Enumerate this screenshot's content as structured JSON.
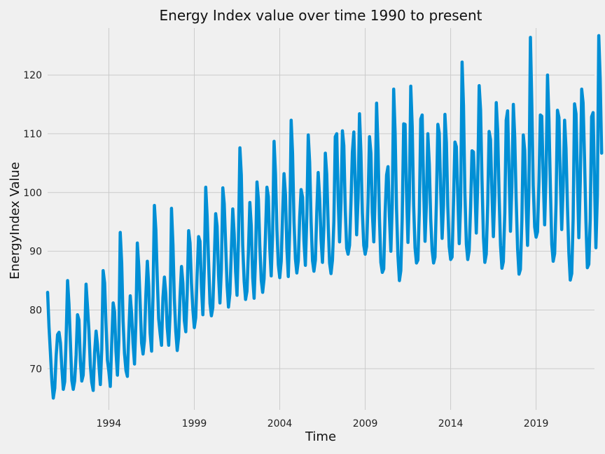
{
  "chart_data": {
    "type": "line",
    "title": "Energy Index value over time 1990 to present",
    "xlabel": "Time",
    "ylabel": "EnergyIndex Value",
    "xlim": [
      "1990-06-01",
      "2022-06-01"
    ],
    "ylim": [
      63,
      128
    ],
    "xticks": [
      "1994",
      "1999",
      "2004",
      "2009",
      "2014",
      "2019"
    ],
    "yticks": [
      70,
      80,
      90,
      100,
      110,
      120
    ],
    "grid": true,
    "line_color": "#008fd5",
    "background_color": "#f0f0f0",
    "series": [
      {
        "frequency": "monthly",
        "start": "1990-06",
        "values": [
          83.0,
          77.1,
          72.5,
          67.9,
          65.0,
          66.7,
          72.2,
          75.8,
          76.2,
          74.4,
          70.2,
          66.5,
          67.8,
          75.0,
          85.0,
          81.0,
          74.6,
          68.0,
          66.5,
          67.9,
          72.3,
          79.2,
          78.3,
          71.3,
          67.9,
          68.9,
          74.9,
          84.4,
          80.7,
          76.5,
          70.6,
          67.7,
          66.3,
          72.7,
          76.4,
          74.1,
          70.8,
          67.3,
          73.3,
          86.7,
          84.6,
          77.6,
          71.5,
          69.5,
          67.0,
          74.2,
          81.2,
          79.7,
          73.0,
          68.9,
          74.8,
          93.2,
          88.0,
          78.1,
          72.6,
          69.7,
          68.7,
          76.0,
          82.4,
          79.3,
          74.3,
          70.8,
          78.0,
          91.4,
          87.4,
          81.0,
          74.4,
          72.5,
          74.8,
          82.5,
          88.3,
          84.1,
          76.1,
          73.0,
          82.3,
          97.8,
          93.6,
          85.4,
          78.5,
          76.0,
          74.0,
          82.1,
          85.6,
          82.8,
          77.1,
          74.0,
          79.4,
          97.3,
          91.1,
          81.9,
          76.4,
          73.1,
          75.4,
          82.3,
          87.4,
          84.6,
          78.2,
          76.3,
          82.7,
          93.5,
          91.4,
          84.6,
          80.0,
          77.0,
          78.7,
          86.3,
          92.5,
          91.7,
          83.9,
          79.2,
          86.8,
          100.9,
          96.0,
          88.4,
          81.1,
          79.0,
          80.4,
          88.3,
          96.4,
          94.3,
          86.0,
          81.2,
          86.9,
          100.8,
          98.1,
          91.3,
          84.2,
          80.5,
          82.8,
          90.2,
          97.2,
          93.0,
          86.5,
          82.5,
          91.9,
          107.6,
          103.0,
          91.0,
          84.9,
          81.8,
          83.2,
          90.0,
          98.3,
          94.4,
          85.5,
          82.0,
          88.8,
          101.8,
          98.9,
          91.0,
          85.1,
          83.0,
          85.3,
          93.0,
          100.9,
          99.3,
          90.4,
          85.8,
          92.7,
          108.7,
          103.2,
          93.6,
          87.7,
          85.5,
          88.3,
          96.2,
          103.2,
          99.6,
          90.5,
          85.7,
          93.9,
          112.3,
          106.7,
          94.9,
          88.7,
          86.3,
          88.4,
          95.8,
          100.5,
          99.2,
          91.7,
          87.6,
          96.0,
          109.8,
          105.2,
          95.0,
          88.4,
          86.6,
          88.5,
          96.7,
          103.4,
          99.0,
          92.1,
          88.1,
          94.3,
          106.7,
          103.1,
          94.4,
          88.0,
          86.2,
          88.5,
          95.1,
          109.5,
          110.0,
          99.1,
          91.6,
          98.4,
          110.5,
          108.0,
          97.0,
          90.5,
          89.5,
          91.0,
          98.2,
          106.8,
          110.3,
          101.7,
          92.8,
          99.0,
          113.4,
          106.9,
          96.5,
          91.0,
          89.5,
          90.8,
          98.4,
          109.5,
          106.7,
          96.6,
          91.6,
          99.5,
          115.2,
          107.3,
          95.6,
          88.1,
          86.4,
          87.0,
          96.5,
          103.0,
          104.4,
          95.9,
          90.0,
          98.0,
          117.6,
          110.0,
          97.2,
          89.2,
          85.0,
          86.7,
          95.6,
          111.7,
          111.6,
          100.3,
          91.5,
          99.3,
          118.1,
          111.2,
          97.9,
          90.6,
          88.0,
          88.5,
          96.6,
          112.5,
          113.2,
          101.3,
          91.7,
          98.3,
          110.0,
          104.8,
          95.5,
          90.2,
          88.0,
          89.0,
          98.3,
          111.6,
          110.1,
          100.5,
          92.2,
          97.9,
          113.3,
          108.5,
          97.6,
          90.8,
          88.6,
          89.0,
          98.0,
          108.6,
          107.8,
          99.4,
          91.3,
          98.0,
          122.2,
          114.8,
          100.0,
          91.2,
          88.6,
          90.1,
          97.6,
          107.1,
          106.9,
          100.8,
          93.1,
          101.4,
          118.2,
          114.1,
          102.3,
          92.4,
          88.1,
          89.5,
          98.0,
          110.4,
          109.0,
          99.7,
          92.5,
          99.6,
          115.3,
          110.5,
          99.8,
          91.0,
          87.1,
          88.2,
          96.5,
          112.3,
          113.9,
          103.2,
          93.4,
          101.1,
          115.0,
          109.4,
          99.0,
          90.4,
          86.1,
          86.9,
          95.3,
          109.8,
          107.2,
          98.0,
          91.0,
          100.8,
          126.4,
          115.0,
          101.2,
          94.1,
          92.4,
          93.3,
          101.9,
          113.2,
          113.0,
          102.4,
          94.5,
          103.0,
          120.0,
          112.6,
          100.8,
          91.2,
          88.3,
          89.6,
          98.1,
          114.0,
          112.8,
          102.0,
          93.7,
          101.1,
          112.3,
          107.5,
          97.5,
          89.7,
          85.1,
          86.2,
          95.5,
          115.1,
          113.4,
          102.6,
          92.3,
          101.9,
          117.6,
          115.3,
          105.6,
          95.0,
          87.2,
          87.8,
          95.5,
          112.9,
          113.6,
          102.0,
          90.6,
          99.6,
          126.7,
          119.4,
          106.7
        ]
      }
    ]
  }
}
